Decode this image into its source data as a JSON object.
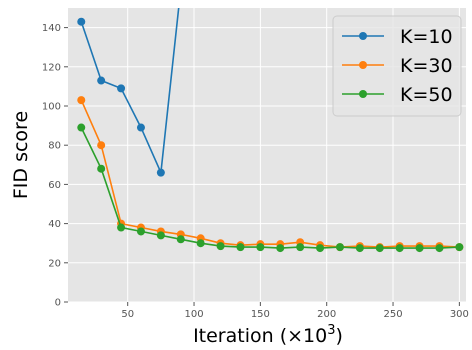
{
  "chart_data": {
    "type": "line",
    "xlabel": "Iteration (×10",
    "xlabel_sup": "3",
    "xlabel_close": ")",
    "ylabel": "FID score",
    "xlim": [
      5,
      305
    ],
    "ylim": [
      0,
      150
    ],
    "xticks": [
      50,
      100,
      150,
      200,
      250,
      300
    ],
    "yticks": [
      0,
      20,
      40,
      60,
      80,
      100,
      120,
      140
    ],
    "grid": true,
    "legend_position": "top-right",
    "series": [
      {
        "name": "K=10",
        "color": "#1f77b4",
        "x": [
          15,
          30,
          45,
          60,
          75,
          90
        ],
        "y": [
          143,
          113,
          109,
          89,
          66,
          160
        ]
      },
      {
        "name": "K=30",
        "color": "#ff7f0e",
        "x": [
          15,
          30,
          45,
          60,
          75,
          90,
          105,
          120,
          135,
          150,
          165,
          180,
          195,
          210,
          225,
          240,
          255,
          270,
          285,
          300
        ],
        "y": [
          103,
          80,
          40,
          38,
          36,
          34.5,
          32.5,
          30,
          29,
          29.5,
          29.5,
          30.5,
          29,
          28,
          28.5,
          28,
          28.5,
          28.5,
          28.5,
          28
        ]
      },
      {
        "name": "K=50",
        "color": "#2ca02c",
        "x": [
          15,
          30,
          45,
          60,
          75,
          90,
          105,
          120,
          135,
          150,
          165,
          180,
          195,
          210,
          225,
          240,
          255,
          270,
          285,
          300
        ],
        "y": [
          89,
          68,
          38,
          36,
          34,
          32,
          30,
          28.5,
          28,
          28,
          27.5,
          28,
          27.5,
          28,
          27.5,
          27.5,
          27.5,
          27.5,
          27.5,
          28
        ]
      }
    ]
  }
}
